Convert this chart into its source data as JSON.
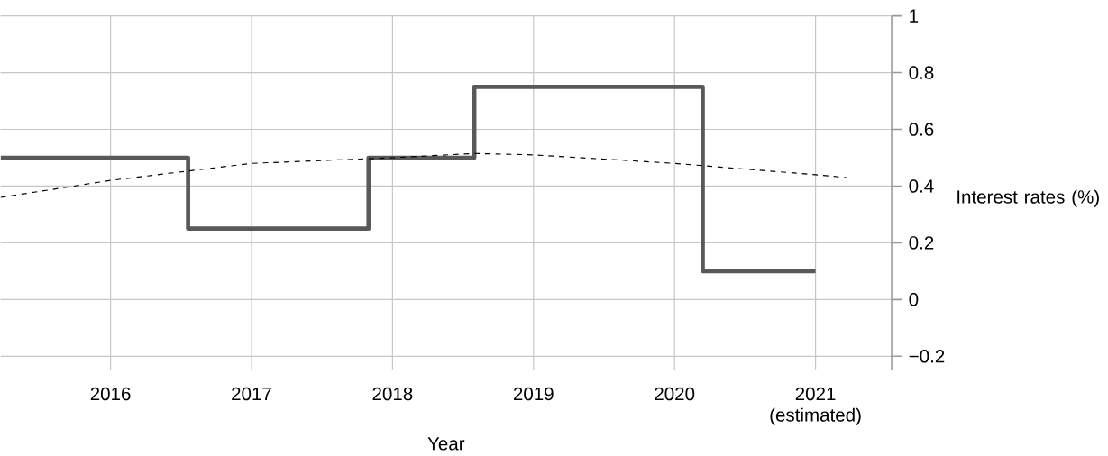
{
  "chart_data": {
    "type": "step",
    "xlabel": "Year",
    "ylabel": "Interest rates (%)",
    "grid": true,
    "marker": "none",
    "xlim": [
      2015.22,
      2021.54
    ],
    "ylim": [
      -0.25,
      1
    ],
    "xticks": [
      2016,
      2017,
      2018,
      2019,
      2020,
      {
        "value": 2021,
        "label": "2021 (estimated)"
      }
    ],
    "yticks": [
      {
        "value": -0.2,
        "label": "−0.2"
      },
      0,
      0.2,
      0.4,
      0.6,
      0.8,
      1
    ],
    "series": [
      {
        "color": "#595959",
        "line_style": "solid",
        "x": [
          2015.22,
          2016.55,
          2017.83,
          2018.58,
          2020.2,
          2021.0
        ],
        "values": [
          0.5,
          0.25,
          0.5,
          0.75,
          0.1,
          0.1
        ]
      },
      {
        "type": "line",
        "color": "#000000",
        "line_style": "dashed",
        "x": [
          2015.22,
          2016,
          2017,
          2018,
          2018.58,
          2019,
          2020,
          2021,
          2021.22
        ],
        "values": [
          0.36,
          0.42,
          0.48,
          0.5,
          0.515,
          0.51,
          0.48,
          0.44,
          0.43
        ]
      }
    ]
  }
}
